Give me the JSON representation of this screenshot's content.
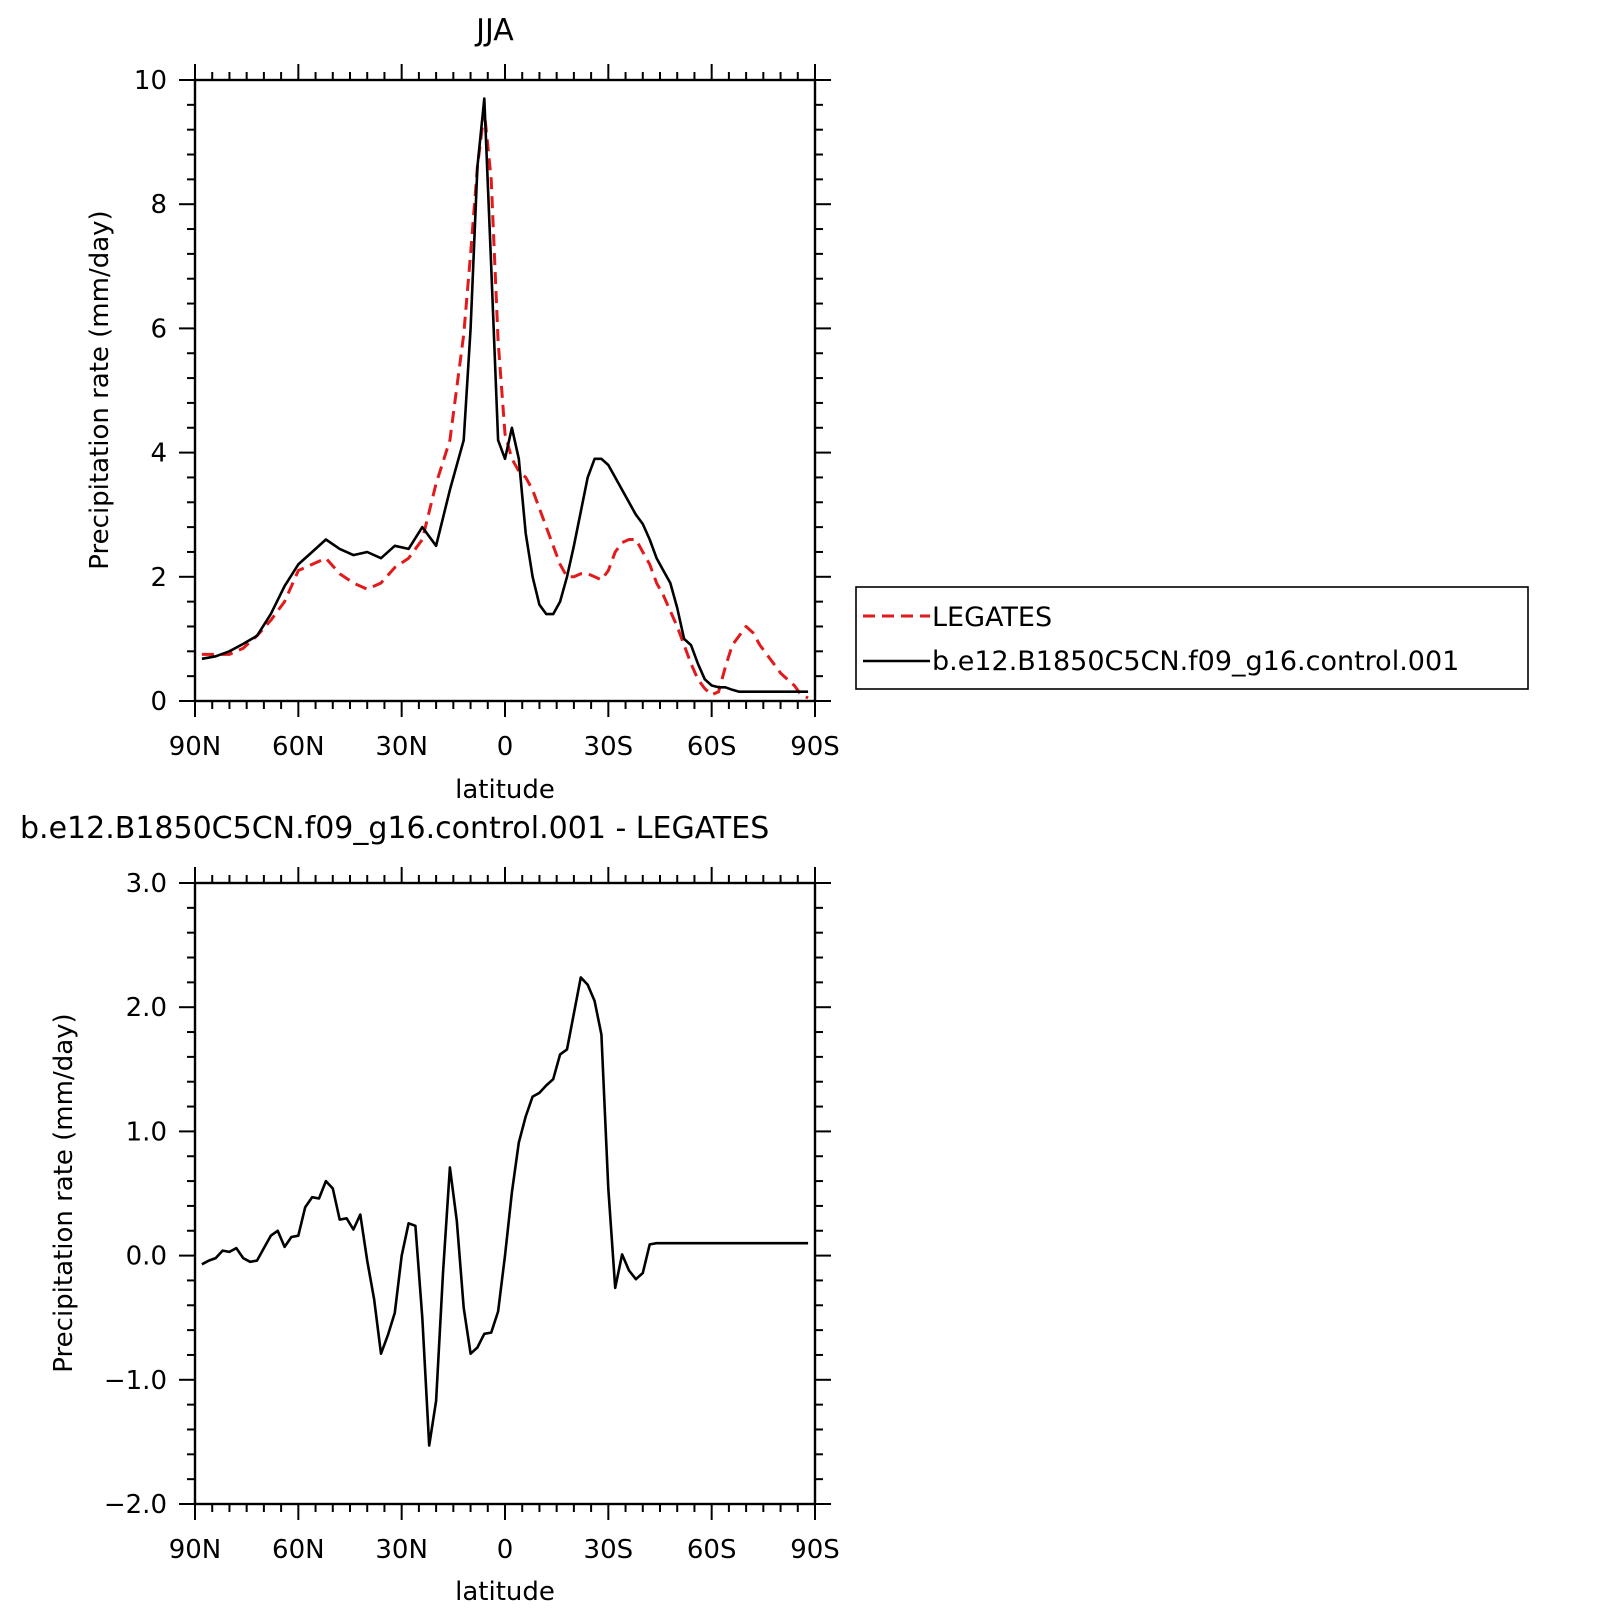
{
  "chart_data": [
    {
      "type": "line",
      "title": "JJA",
      "xlabel": "latitude",
      "ylabel": "Precipitation rate (mm/day)",
      "xlim": [
        -90,
        90
      ],
      "ylim": [
        0,
        10
      ],
      "xticks": [
        -90,
        -60,
        -30,
        0,
        30,
        60,
        90
      ],
      "xtick_labels": [
        "90N",
        "60N",
        "30N",
        "0",
        "30S",
        "60S",
        "90S"
      ],
      "yticks": [
        0,
        2,
        4,
        6,
        8,
        10
      ],
      "ytick_labels": [
        "0",
        "2",
        "4",
        "6",
        "8",
        "10"
      ],
      "grid": false,
      "legend_position": "right",
      "series": [
        {
          "name": "LEGATES",
          "color": "#e31a1c",
          "dash": "dashed",
          "x": [
            -88,
            -84,
            -80,
            -76,
            -72,
            -68,
            -64,
            -60,
            -56,
            -52,
            -48,
            -44,
            -40,
            -36,
            -32,
            -28,
            -24,
            -20,
            -16,
            -12,
            -10,
            -8,
            -6,
            -4,
            -2,
            0,
            2,
            4,
            6,
            8,
            10,
            12,
            14,
            16,
            18,
            20,
            22,
            24,
            26,
            28,
            30,
            32,
            34,
            36,
            38,
            40,
            42,
            44,
            46,
            48,
            50,
            52,
            54,
            56,
            58,
            60,
            62,
            64,
            66,
            68,
            70,
            72,
            74,
            76,
            78,
            80,
            82,
            84,
            86,
            88
          ],
          "y": [
            0.75,
            0.75,
            0.75,
            0.85,
            1.05,
            1.3,
            1.6,
            2.1,
            2.2,
            2.3,
            2.05,
            1.9,
            1.8,
            1.9,
            2.15,
            2.3,
            2.6,
            3.5,
            4.2,
            5.9,
            7.2,
            8.6,
            9.5,
            8.4,
            5.8,
            4.3,
            3.9,
            3.7,
            3.6,
            3.4,
            3.1,
            2.8,
            2.5,
            2.2,
            2.0,
            2.0,
            2.05,
            2.05,
            2.0,
            1.95,
            2.1,
            2.4,
            2.55,
            2.6,
            2.6,
            2.4,
            2.2,
            1.9,
            1.7,
            1.45,
            1.2,
            0.9,
            0.6,
            0.35,
            0.2,
            0.1,
            0.15,
            0.55,
            0.9,
            1.05,
            1.2,
            1.1,
            0.9,
            0.75,
            0.6,
            0.45,
            0.35,
            0.25,
            0.1,
            0.05
          ]
        },
        {
          "name": "b.e12.B1850C5CN.f09_g16.control.001",
          "color": "#000000",
          "dash": "solid",
          "x": [
            -88,
            -84,
            -80,
            -76,
            -72,
            -68,
            -64,
            -60,
            -56,
            -52,
            -48,
            -44,
            -40,
            -36,
            -32,
            -28,
            -24,
            -20,
            -16,
            -12,
            -10,
            -8,
            -6,
            -4,
            -2,
            0,
            2,
            4,
            6,
            8,
            10,
            12,
            14,
            16,
            18,
            20,
            22,
            24,
            26,
            28,
            30,
            32,
            34,
            36,
            38,
            40,
            42,
            44,
            46,
            48,
            50,
            52,
            54,
            56,
            58,
            60,
            62,
            64,
            66,
            68,
            70,
            72,
            74,
            76,
            78,
            80,
            82,
            84,
            86,
            88
          ],
          "y": [
            0.68,
            0.72,
            0.8,
            0.92,
            1.05,
            1.4,
            1.85,
            2.2,
            2.4,
            2.6,
            2.45,
            2.35,
            2.4,
            2.3,
            2.5,
            2.45,
            2.8,
            2.5,
            3.4,
            4.2,
            6.0,
            8.6,
            9.7,
            7.0,
            4.2,
            3.9,
            4.4,
            3.9,
            2.7,
            2.0,
            1.55,
            1.4,
            1.4,
            1.6,
            2.0,
            2.5,
            3.05,
            3.6,
            3.9,
            3.9,
            3.8,
            3.6,
            3.4,
            3.2,
            3.0,
            2.85,
            2.6,
            2.3,
            2.1,
            1.9,
            1.5,
            1.0,
            0.9,
            0.6,
            0.35,
            0.25,
            0.22,
            0.22,
            0.18,
            0.15,
            0.15,
            0.15,
            0.15,
            0.15,
            0.15,
            0.15,
            0.15,
            0.15,
            0.15,
            0.15
          ]
        }
      ]
    },
    {
      "type": "line",
      "title": "b.e12.B1850C5CN.f09_g16.control.001 - LEGATES",
      "xlabel": "latitude",
      "ylabel": "Precipitation rate (mm/day)",
      "xlim": [
        -90,
        90
      ],
      "ylim": [
        -2.0,
        3.0
      ],
      "xticks": [
        -90,
        -60,
        -30,
        0,
        30,
        60,
        90
      ],
      "xtick_labels": [
        "90N",
        "60N",
        "30N",
        "0",
        "30S",
        "60S",
        "90S"
      ],
      "yticks": [
        -2.0,
        -1.0,
        0.0,
        1.0,
        2.0,
        3.0
      ],
      "ytick_labels": [
        "−2.0",
        "−1.0",
        "0.0",
        "1.0",
        "2.0",
        "3.0"
      ],
      "grid": false,
      "series": [
        {
          "color": "#000000",
          "dash": "solid",
          "x": [
            -88,
            -86,
            -84,
            -82,
            -80,
            -78,
            -76,
            -74,
            -72,
            -70,
            -68,
            -66,
            -64,
            -62,
            -60,
            -58,
            -56,
            -54,
            -52,
            -50,
            -48,
            -46,
            -44,
            -42,
            -40,
            -38,
            -36,
            -34,
            -32,
            -30,
            -28,
            -26,
            -24,
            -22,
            -20,
            -18,
            -16,
            -14,
            -12,
            -10,
            -8,
            -6,
            -4,
            -2,
            0,
            2,
            4,
            6,
            8,
            10,
            12,
            14,
            16,
            18,
            20,
            22,
            24,
            26,
            28,
            30,
            32,
            34,
            36,
            38,
            40,
            42,
            44,
            46,
            48,
            50,
            52,
            54,
            56,
            58,
            60,
            62,
            64,
            66,
            68,
            70,
            72,
            74,
            76,
            78,
            80,
            82,
            84,
            86,
            88
          ],
          "y": [
            -0.07,
            -0.04,
            -0.02,
            0.04,
            0.03,
            0.06,
            -0.02,
            -0.05,
            -0.04,
            0.06,
            0.16,
            0.2,
            0.07,
            0.15,
            0.16,
            0.39,
            0.47,
            0.46,
            0.6,
            0.54,
            0.29,
            0.3,
            0.21,
            0.33,
            -0.04,
            -0.35,
            -0.79,
            -0.64,
            -0.46,
            0.0,
            0.26,
            0.24,
            -0.5,
            -1.53,
            -1.17,
            -0.14,
            0.71,
            0.28,
            -0.42,
            -0.79,
            -0.74,
            -0.63,
            -0.62,
            -0.45,
            0.0,
            0.51,
            0.91,
            1.12,
            1.28,
            1.31,
            1.37,
            1.42,
            1.62,
            1.66,
            1.95,
            2.24,
            2.18,
            2.05,
            1.78,
            0.54,
            -0.26,
            0.01,
            -0.12,
            -0.19,
            -0.14,
            0.09,
            0.1,
            0.1,
            0.1,
            0.1,
            0.1,
            0.1,
            0.1,
            0.1,
            0.1,
            0.1,
            0.1,
            0.1,
            0.1,
            0.1,
            0.1,
            0.1,
            0.1,
            0.1,
            0.1,
            0.1,
            0.1,
            0.1,
            0.1
          ]
        }
      ]
    }
  ]
}
